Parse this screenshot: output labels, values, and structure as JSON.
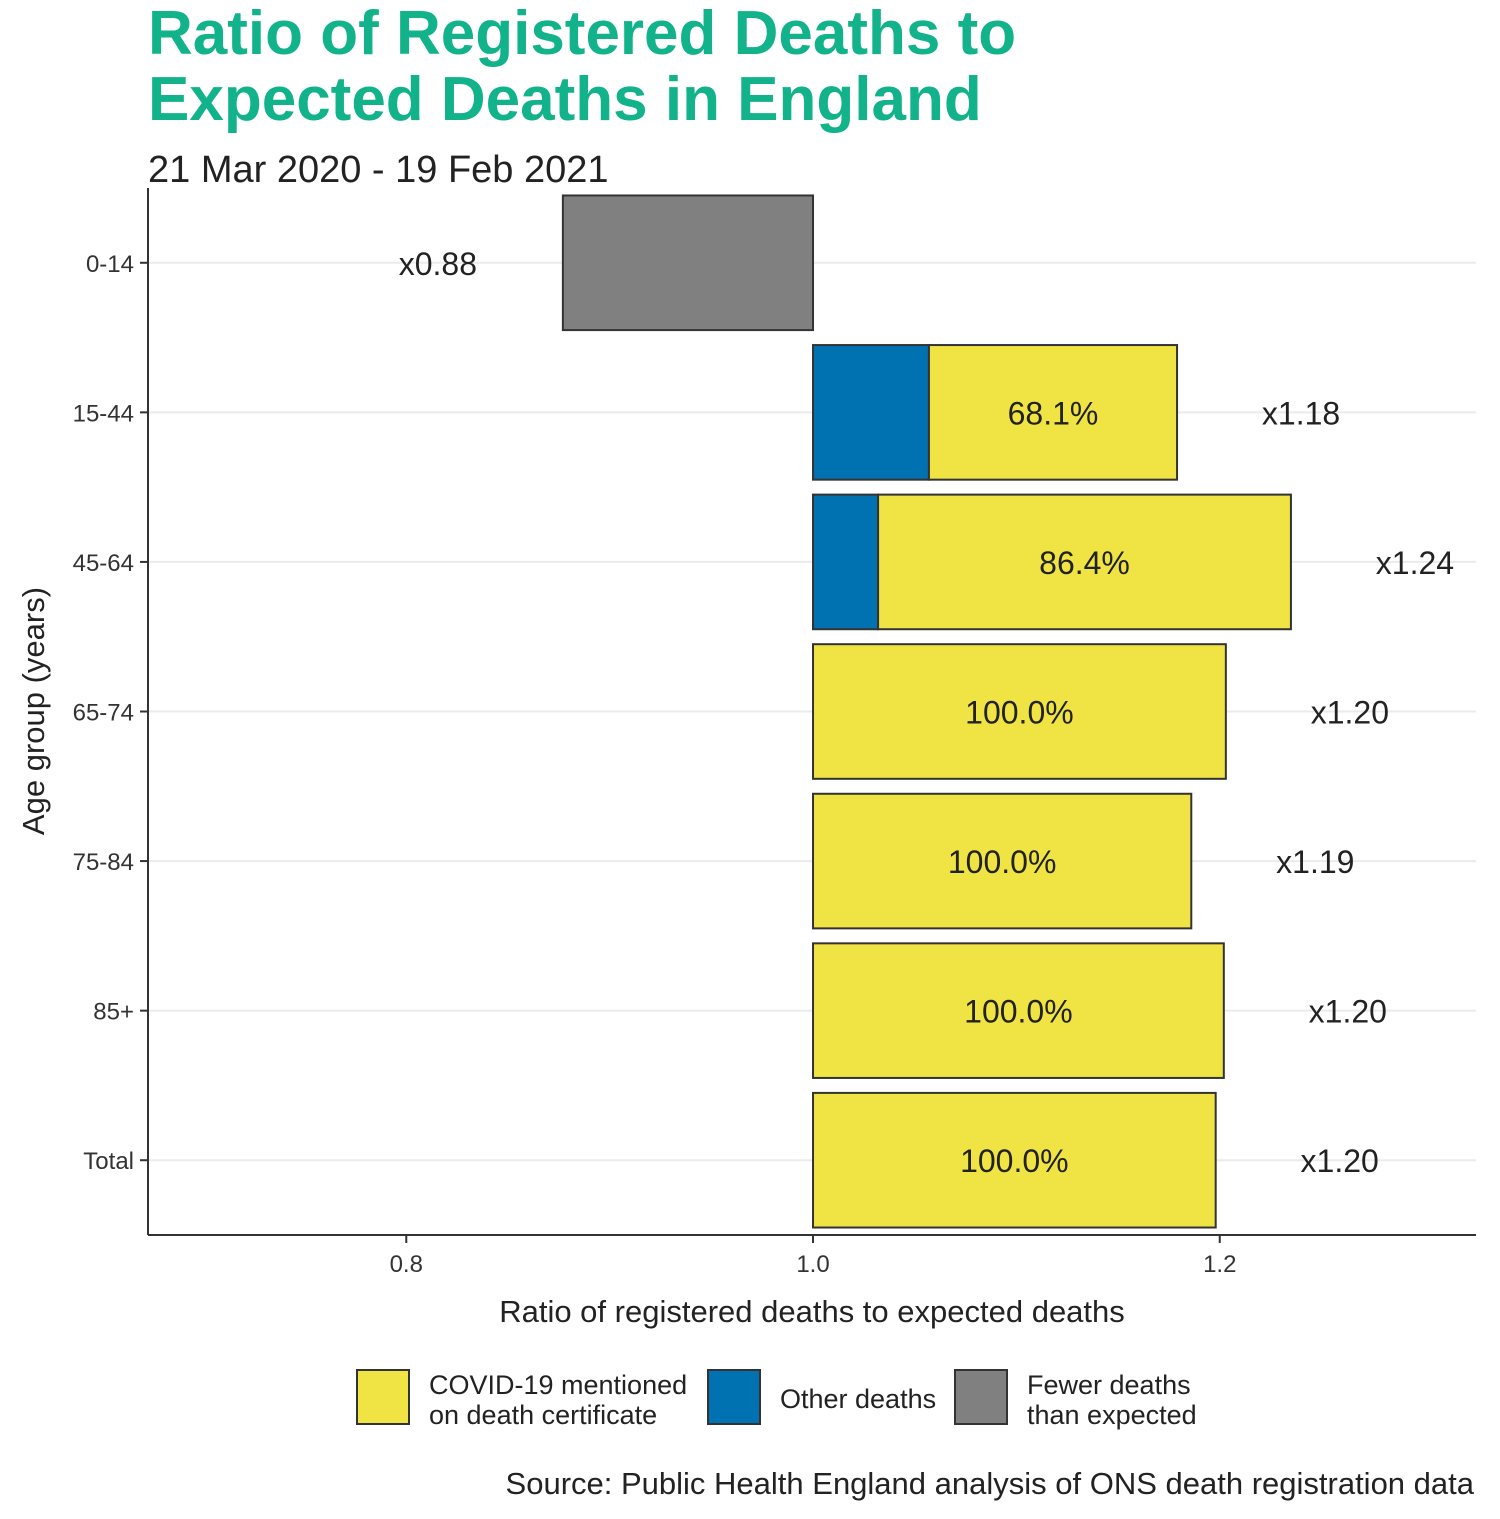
{
  "chart_data": {
    "type": "bar",
    "orientation": "horizontal",
    "stacked": true,
    "title": "Ratio of Registered Deaths to Expected Deaths in England",
    "title_lines": [
      "Ratio of Registered Deaths to",
      "Expected Deaths in England"
    ],
    "subtitle": "21 Mar 2020 - 19 Feb 2021",
    "xlabel": "Ratio of registered deaths to expected deaths",
    "ylabel": "Age group (years)",
    "xlim": [
      0.673,
      1.326
    ],
    "baseline": 1.0,
    "xticks": [
      "0.8",
      "1.0",
      "1.2"
    ],
    "xtick_values": [
      0.8,
      1.0,
      1.2
    ],
    "grid": "horizontal major lines only",
    "categories": [
      "0-14",
      "15-44",
      "45-64",
      "65-74",
      "75-84",
      "85+",
      "Total"
    ],
    "ratio": [
      0.877,
      1.179,
      1.235,
      1.203,
      1.186,
      1.202,
      1.198
    ],
    "ratio_labels": [
      "x0.88",
      "x1.18",
      "x1.24",
      "x1.20",
      "x1.19",
      "x1.20",
      "x1.20"
    ],
    "other_deaths_end": [
      null,
      1.057,
      1.032,
      1.0,
      1.0,
      1.0,
      1.0
    ],
    "covid_share_labels": [
      "",
      "68.1%",
      "86.4%",
      "100.0%",
      "100.0%",
      "100.0%",
      "100.0%"
    ],
    "series": [
      {
        "name": "COVID-19 mentioned on death certificate",
        "label_lines": [
          "COVID-19 mentioned",
          "on death certificate"
        ],
        "color": "#efe443"
      },
      {
        "name": "Other deaths",
        "label_lines": [
          "Other deaths"
        ],
        "color": "#0072b2"
      },
      {
        "name": "Fewer deaths than expected",
        "label_lines": [
          "Fewer deaths",
          "than expected"
        ],
        "color": "#808080"
      }
    ],
    "legend_position": "bottom",
    "title_color": "#12b38a",
    "source": "Source: Public Health England analysis of ONS death registration data"
  }
}
